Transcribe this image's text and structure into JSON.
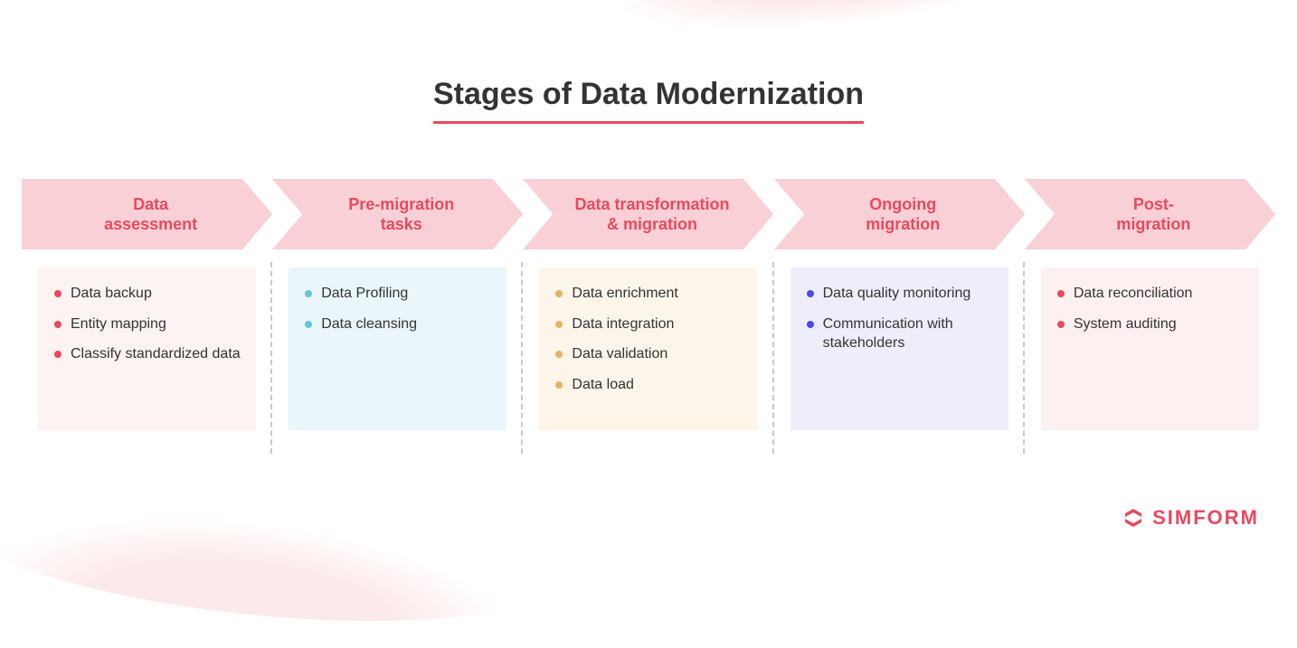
{
  "title": "Stages of Data Modernization",
  "title_color": "#333333",
  "title_underline_color": "#e84a5f",
  "title_fontsize": 34,
  "chevron_bg": "#f9d0d5",
  "chevron_label_color": "#e84a5f",
  "chevron_label_fontsize": 18,
  "item_text_color": "#333333",
  "item_fontsize": 16,
  "divider_color": "#c9c9c9",
  "background_swoosh_color": "#fceaea",
  "stages": [
    {
      "label": "Data\nassessment",
      "card_bg": "#fdf3f1",
      "bullet_color": "#e84a5f",
      "items": [
        "Data backup",
        "Entity mapping",
        "Classify standardized data"
      ]
    },
    {
      "label": "Pre-migration\ntasks",
      "card_bg": "#eaf6f9",
      "bullet_color": "#66c6d8",
      "items": [
        "Data Profiling",
        "Data cleansing"
      ]
    },
    {
      "label": "Data transformation\n& migration",
      "card_bg": "#fdf5e9",
      "bullet_color": "#e9b162",
      "items": [
        "Data enrichment",
        "Data integration",
        "Data validation",
        "Data load"
      ]
    },
    {
      "label": "Ongoing\nmigration",
      "card_bg": "#eeeefb",
      "bullet_color": "#4a4ae8",
      "items": [
        "Data quality monitoring",
        "Communication with stakeholders"
      ]
    },
    {
      "label": "Post-\nmigration",
      "card_bg": "#fdf0f1",
      "bullet_color": "#e84a5f",
      "items": [
        "Data reconciliation",
        "System auditing"
      ]
    }
  ],
  "logo": {
    "text": "SIMFORM",
    "color": "#e84a5f"
  }
}
